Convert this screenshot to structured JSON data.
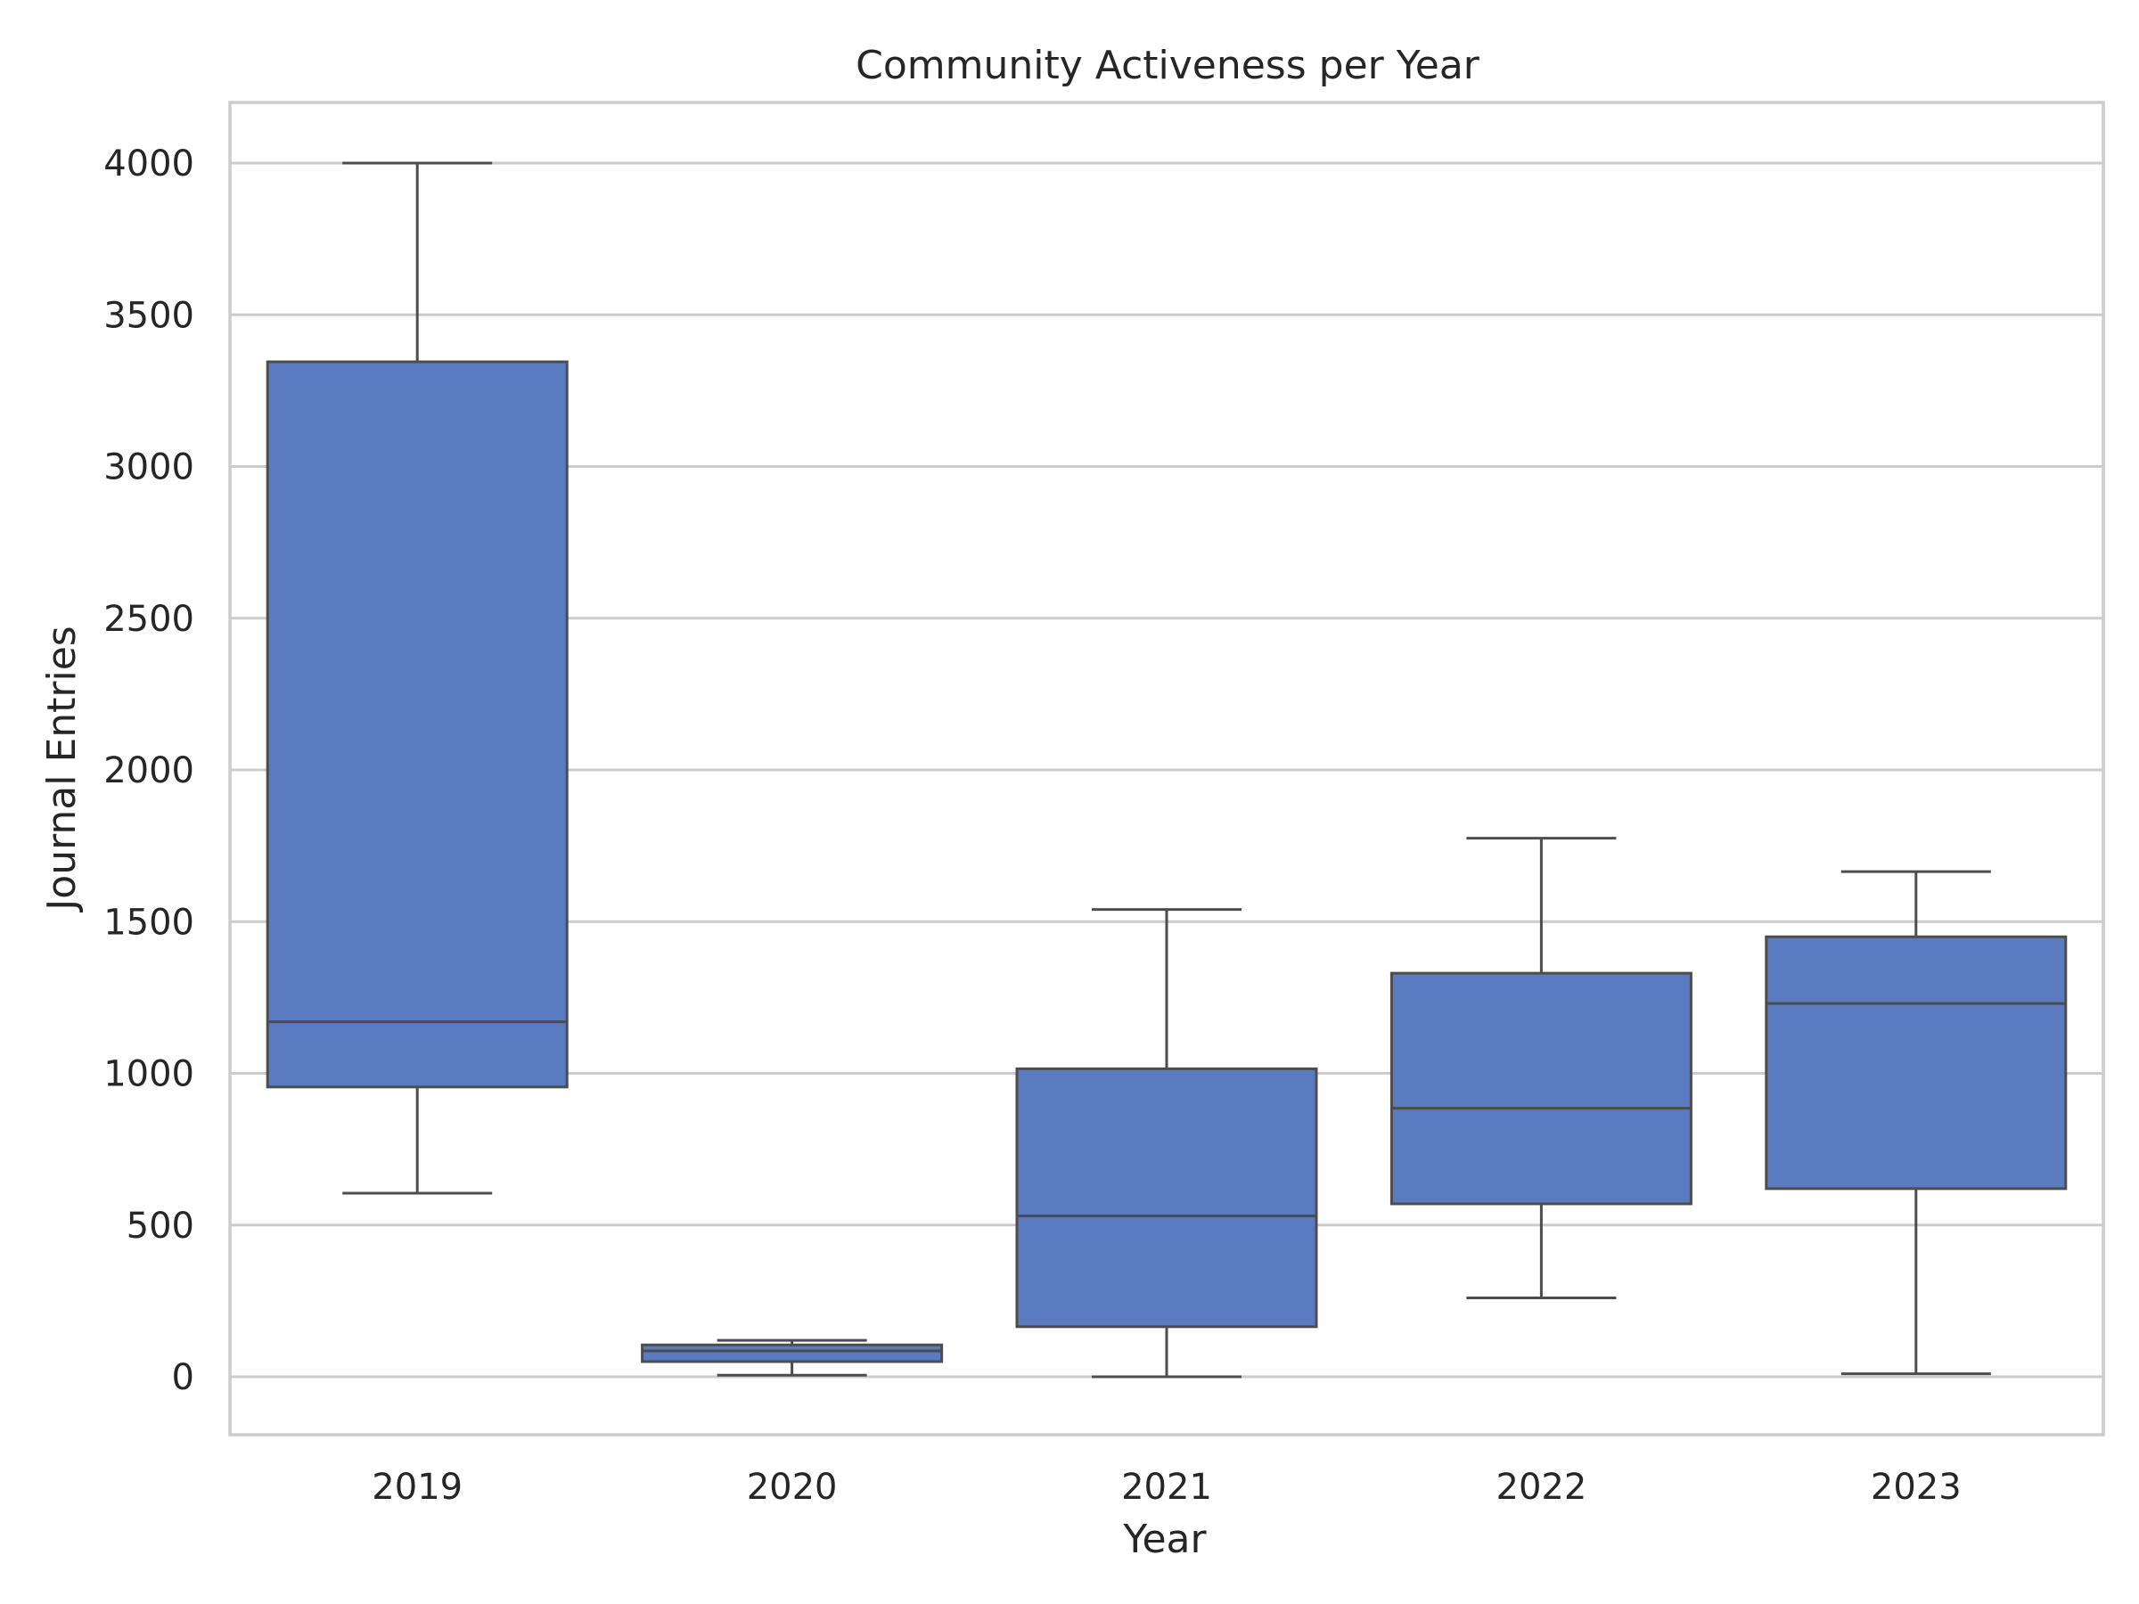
{
  "chart_data": {
    "type": "box",
    "title": "Community Activeness per Year",
    "xlabel": "Year",
    "ylabel": "Journal Entries",
    "categories": [
      "2019",
      "2020",
      "2021",
      "2022",
      "2023"
    ],
    "boxes": [
      {
        "category": "2019",
        "whisker_low": 605,
        "q1": 955,
        "median": 1170,
        "q3": 3345,
        "whisker_high": 4000
      },
      {
        "category": "2020",
        "whisker_low": 5,
        "q1": 50,
        "median": 85,
        "q3": 105,
        "whisker_high": 120
      },
      {
        "category": "2021",
        "whisker_low": 0,
        "q1": 165,
        "median": 530,
        "q3": 1015,
        "whisker_high": 1540
      },
      {
        "category": "2022",
        "whisker_low": 260,
        "q1": 570,
        "median": 885,
        "q3": 1330,
        "whisker_high": 1775
      },
      {
        "category": "2023",
        "whisker_low": 10,
        "q1": 620,
        "median": 1230,
        "q3": 1450,
        "whisker_high": 1665
      }
    ],
    "yticks": [
      0,
      500,
      1000,
      1500,
      2000,
      2500,
      3000,
      3500,
      4000
    ],
    "ylim": [
      -200,
      4200
    ],
    "grid": "horizontal",
    "box_color": "#5a7bbf",
    "line_color": "#4d4d4d",
    "grid_color": "#cccccc",
    "legend": "none"
  }
}
